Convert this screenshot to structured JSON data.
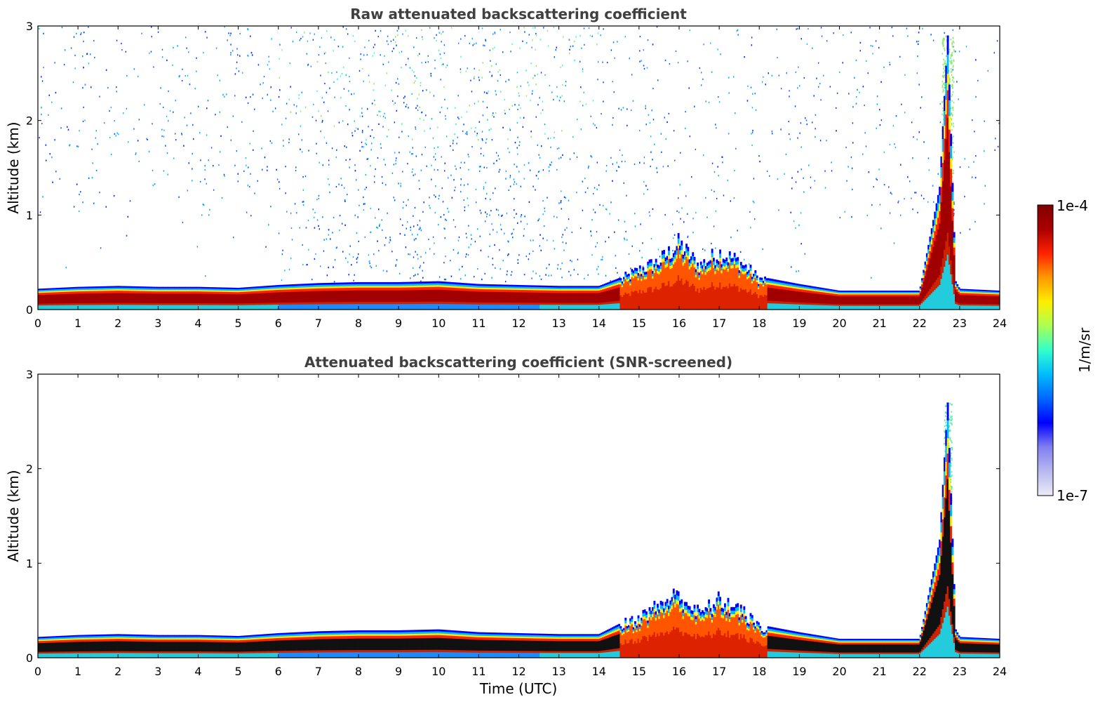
{
  "chart_data": [
    {
      "type": "heatmap",
      "title": "Raw attenuated backscattering coefficient",
      "xlabel": "",
      "ylabel": "Altitude (km)",
      "xlim": [
        0,
        24
      ],
      "ylim": [
        0,
        3
      ],
      "x_ticks": [
        "0",
        "1",
        "2",
        "3",
        "4",
        "5",
        "6",
        "7",
        "8",
        "9",
        "10",
        "11",
        "12",
        "13",
        "14",
        "15",
        "16",
        "17",
        "18",
        "19",
        "20",
        "21",
        "22",
        "23",
        "24"
      ],
      "y_ticks": [
        "0",
        "1",
        "2",
        "3"
      ],
      "color_scale": "log",
      "value_range": [
        1e-07,
        0.0001
      ],
      "boundary_layer_top_km": [
        [
          0,
          0.22
        ],
        [
          1,
          0.24
        ],
        [
          2,
          0.25
        ],
        [
          3,
          0.24
        ],
        [
          4,
          0.24
        ],
        [
          5,
          0.23
        ],
        [
          6,
          0.26
        ],
        [
          7,
          0.28
        ],
        [
          8,
          0.29
        ],
        [
          9,
          0.29
        ],
        [
          10,
          0.3
        ],
        [
          11,
          0.27
        ],
        [
          12,
          0.26
        ],
        [
          13,
          0.25
        ],
        [
          14,
          0.25
        ],
        [
          14.6,
          0.35
        ],
        [
          15,
          0.45
        ],
        [
          15.5,
          0.55
        ],
        [
          16,
          0.75
        ],
        [
          16.5,
          0.5
        ],
        [
          17,
          0.65
        ],
        [
          17.5,
          0.55
        ],
        [
          18,
          0.35
        ],
        [
          19,
          0.27
        ],
        [
          20,
          0.2
        ],
        [
          21,
          0.2
        ],
        [
          22,
          0.2
        ],
        [
          22.5,
          1.3
        ],
        [
          22.7,
          2.9
        ],
        [
          22.9,
          0.3
        ],
        [
          23,
          0.22
        ],
        [
          24,
          0.2
        ]
      ],
      "noise_above_boundary_layer": true
    },
    {
      "type": "heatmap",
      "title": "Attenuated backscattering coefficient (SNR-screened)",
      "xlabel": "Time (UTC)",
      "ylabel": "Altitude (km)",
      "xlim": [
        0,
        24
      ],
      "ylim": [
        0,
        3
      ],
      "x_ticks": [
        "0",
        "1",
        "2",
        "3",
        "4",
        "5",
        "6",
        "7",
        "8",
        "9",
        "10",
        "11",
        "12",
        "13",
        "14",
        "15",
        "16",
        "17",
        "18",
        "19",
        "20",
        "21",
        "22",
        "23",
        "24"
      ],
      "y_ticks": [
        "0",
        "1",
        "2",
        "3"
      ],
      "color_scale": "log",
      "value_range": [
        1e-07,
        0.0001
      ],
      "boundary_layer_top_km": [
        [
          0,
          0.22
        ],
        [
          1,
          0.24
        ],
        [
          2,
          0.25
        ],
        [
          3,
          0.24
        ],
        [
          4,
          0.24
        ],
        [
          5,
          0.23
        ],
        [
          6,
          0.26
        ],
        [
          7,
          0.28
        ],
        [
          8,
          0.29
        ],
        [
          9,
          0.29
        ],
        [
          10,
          0.3
        ],
        [
          11,
          0.27
        ],
        [
          12,
          0.26
        ],
        [
          13,
          0.25
        ],
        [
          14,
          0.25
        ],
        [
          14.6,
          0.38
        ],
        [
          15,
          0.45
        ],
        [
          15.5,
          0.6
        ],
        [
          16,
          0.72
        ],
        [
          16.5,
          0.5
        ],
        [
          17,
          0.65
        ],
        [
          17.5,
          0.55
        ],
        [
          18,
          0.35
        ],
        [
          19,
          0.27
        ],
        [
          20,
          0.2
        ],
        [
          21,
          0.2
        ],
        [
          22,
          0.2
        ],
        [
          22.5,
          1.25
        ],
        [
          22.7,
          2.7
        ],
        [
          22.9,
          0.3
        ],
        [
          23,
          0.22
        ],
        [
          24,
          0.2
        ]
      ],
      "noise_above_boundary_layer": false
    }
  ],
  "colorbar": {
    "label": "1/m/sr",
    "max_label": "1e-4",
    "min_label": "1e-7",
    "colors": [
      "#ececf6",
      "#b8b8f0",
      "#8080f0",
      "#0000ff",
      "#0066ff",
      "#00bbff",
      "#33ffcc",
      "#aaff55",
      "#ffee00",
      "#ff9900",
      "#ff2200",
      "#aa0000",
      "#800000"
    ]
  }
}
